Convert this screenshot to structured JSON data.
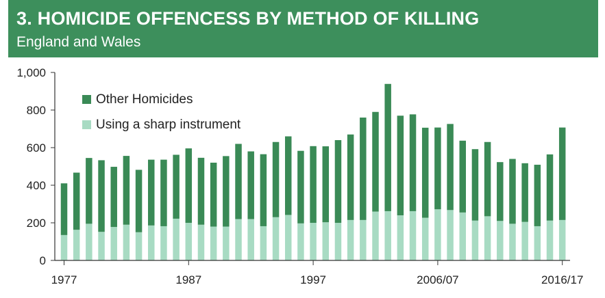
{
  "header": {
    "title": "3. HOMICIDE OFFENCESS BY METHOD OF KILLING",
    "subtitle": "England and Wales"
  },
  "colors": {
    "header_bg": "#3d8f5c",
    "other": "#3a8a56",
    "sharp": "#a8dbc3"
  },
  "chart_data": {
    "type": "bar",
    "stacked": true,
    "title": "3. HOMICIDE OFFENCESS BY METHOD OF KILLING",
    "subtitle": "England and Wales",
    "ylim": [
      0,
      1000
    ],
    "yticks": [
      "0",
      "200",
      "400",
      "600",
      "800",
      "1,000"
    ],
    "ytick_values": [
      0,
      200,
      400,
      600,
      800,
      1000
    ],
    "xtick_labels": [
      {
        "index": 0,
        "label": "1977"
      },
      {
        "index": 10,
        "label": "1987"
      },
      {
        "index": 20,
        "label": "1997"
      },
      {
        "index": 30,
        "label": "2006/07"
      },
      {
        "index": 40,
        "label": "2016/17"
      }
    ],
    "legend": {
      "placement": "top-left",
      "entries": [
        "Other Homicides",
        "Using a sharp instrument"
      ]
    },
    "categories": [
      "1977",
      "1978",
      "1979",
      "1980",
      "1981",
      "1982",
      "1983",
      "1984",
      "1985",
      "1986",
      "1987",
      "1988",
      "1989",
      "1990",
      "1991",
      "1992",
      "1993",
      "1994",
      "1995",
      "1996",
      "1997",
      "1998",
      "1999",
      "2000",
      "2001",
      "2002",
      "2003",
      "2004",
      "2005",
      "2006",
      "2006/07",
      "2007/08",
      "2008/09",
      "2009/10",
      "2010/11",
      "2011/12",
      "2012/13",
      "2013/14",
      "2014/15",
      "2015/16",
      "2016/17"
    ],
    "series": [
      {
        "name": "Using a sharp instrument",
        "values": [
          135,
          163,
          195,
          152,
          178,
          190,
          150,
          186,
          182,
          222,
          200,
          190,
          180,
          180,
          220,
          220,
          182,
          230,
          242,
          197,
          200,
          203,
          200,
          215,
          215,
          260,
          262,
          240,
          262,
          227,
          272,
          268,
          255,
          212,
          235,
          210,
          195,
          205,
          182,
          212,
          215
        ]
      },
      {
        "name": "Other Homicides",
        "values": [
          275,
          304,
          350,
          381,
          320,
          366,
          332,
          350,
          354,
          340,
          396,
          356,
          340,
          375,
          400,
          360,
          383,
          400,
          418,
          386,
          408,
          404,
          440,
          455,
          545,
          530,
          677,
          530,
          515,
          479,
          435,
          458,
          382,
          380,
          395,
          313,
          345,
          312,
          327,
          352,
          492
        ]
      }
    ]
  }
}
